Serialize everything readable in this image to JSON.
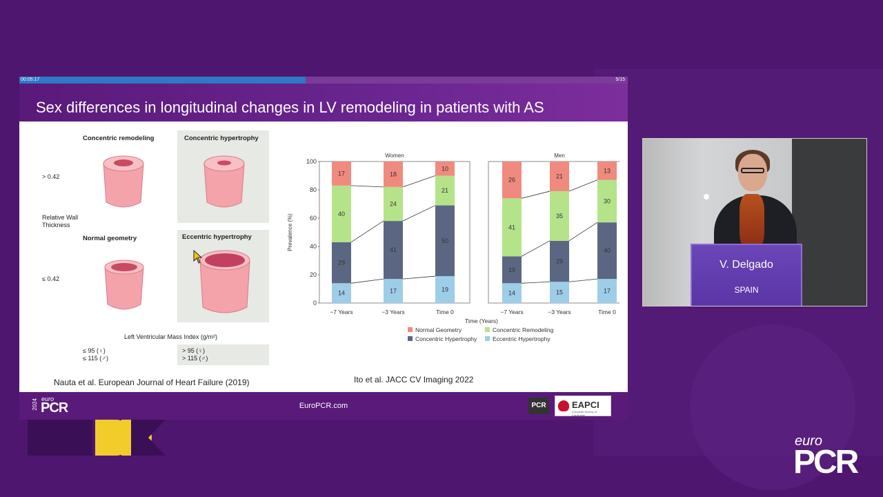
{
  "slide": {
    "elapsed": "00:05:17",
    "page": "5/15",
    "progress_fraction": 0.47,
    "title": "Sex differences in longitudinal changes in LV remodeling in patients with AS",
    "footer_url": "EuroPCR.com",
    "footer_logo_year": "2024",
    "footer_logo_euro": "euro",
    "footer_logo_pcr": "PCR",
    "pcr_badge": "PCR",
    "eapci_badge": "EAPCI",
    "eapci_sub": "European Society of Cardiology"
  },
  "geometry_figure": {
    "row_label_top": "> 0.42",
    "row_label_bottom": "≤ 0.42",
    "axis_label": "Relative Wall Thickness",
    "cell_concentric_remodeling": "Concentric remodeling",
    "cell_concentric_hypertrophy": "Concentric hypertrophy",
    "cell_normal_geometry": "Normal geometry",
    "cell_eccentric_hypertrophy": "Eccentric hypertrophy",
    "x_axis_label": "Left Ventricular Mass Index (g/m²)",
    "left_thresh_1": "≤ 95 (♀)",
    "left_thresh_2": "≤ 115 (♂)",
    "right_thresh_1": "> 95 (♀)",
    "right_thresh_2": "> 115 (♂)",
    "citation": "Nauta et al. European Journal of Heart Failure (2019)"
  },
  "chart_citation": "Ito et al. JACC CV Imaging 2022",
  "chart_data": [
    {
      "type": "bar",
      "stacked": true,
      "title": "Women",
      "categories": [
        "−7 Years",
        "−3 Years",
        "Time 0"
      ],
      "ylabel": "Prevalence (%)",
      "ylim": [
        0,
        100
      ],
      "yticks": [
        0,
        20,
        40,
        60,
        80,
        100
      ],
      "series": [
        {
          "name": "Eccentric Hypertrophy",
          "color": "#9ecde8",
          "values": [
            14,
            17,
            19
          ]
        },
        {
          "name": "Concentric Hypertrophy",
          "color": "#5b6782",
          "values": [
            29,
            41,
            50
          ]
        },
        {
          "name": "Concentric Remodeling",
          "color": "#b5e38a",
          "values": [
            40,
            24,
            21
          ]
        },
        {
          "name": "Normal Geometry",
          "color": "#f08a7e",
          "values": [
            17,
            18,
            10
          ]
        }
      ]
    },
    {
      "type": "bar",
      "stacked": true,
      "title": "Men",
      "categories": [
        "−7 Years",
        "−3 Years",
        "Time 0"
      ],
      "ylim": [
        0,
        100
      ],
      "series": [
        {
          "name": "Eccentric Hypertrophy",
          "color": "#9ecde8",
          "values": [
            14,
            15,
            17
          ]
        },
        {
          "name": "Concentric Hypertrophy",
          "color": "#5b6782",
          "values": [
            19,
            29,
            40
          ]
        },
        {
          "name": "Concentric Remodeling",
          "color": "#b5e38a",
          "values": [
            41,
            35,
            30
          ]
        },
        {
          "name": "Normal Geometry",
          "color": "#f08a7e",
          "values": [
            26,
            21,
            13
          ]
        }
      ]
    }
  ],
  "chart_common": {
    "xlabel": "Time (Years)",
    "legend": [
      {
        "name": "Normal Geometry",
        "color": "#f08a7e"
      },
      {
        "name": "Concentric Remodeling",
        "color": "#b5e38a"
      },
      {
        "name": "Concentric Hypertrophy",
        "color": "#5b6782"
      },
      {
        "name": "Eccentric Hypertrophy",
        "color": "#9ecde8"
      }
    ]
  },
  "speaker": {
    "name": "V. Delgado",
    "country": "SPAIN"
  },
  "brand": {
    "euro": "euro",
    "pcr": "PCR"
  }
}
